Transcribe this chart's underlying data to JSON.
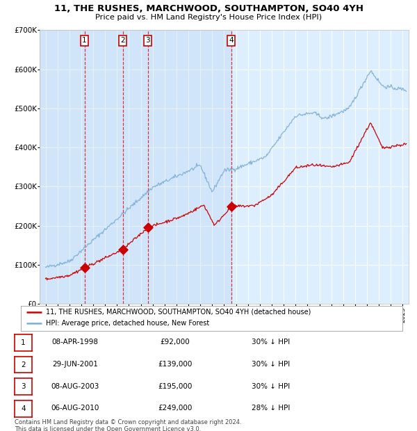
{
  "title": "11, THE RUSHES, MARCHWOOD, SOUTHAMPTON, SO40 4YH",
  "subtitle": "Price paid vs. HM Land Registry's House Price Index (HPI)",
  "title_fontsize": 9.5,
  "subtitle_fontsize": 8.5,
  "background_color": "#ffffff",
  "plot_bg_color": "#ddeeff",
  "grid_color": "#ffffff",
  "sale_dates": [
    1998.27,
    2001.49,
    2003.6,
    2010.6
  ],
  "sale_prices": [
    92000,
    139000,
    195000,
    249000
  ],
  "sale_labels": [
    "1",
    "2",
    "3",
    "4"
  ],
  "legend_house": "11, THE RUSHES, MARCHWOOD, SOUTHAMPTON, SO40 4YH (detached house)",
  "legend_hpi": "HPI: Average price, detached house, New Forest",
  "house_color": "#cc0000",
  "hpi_color": "#7aadd4",
  "table_rows": [
    [
      "1",
      "08-APR-1998",
      "£92,000",
      "30% ↓ HPI"
    ],
    [
      "2",
      "29-JUN-2001",
      "£139,000",
      "30% ↓ HPI"
    ],
    [
      "3",
      "08-AUG-2003",
      "£195,000",
      "30% ↓ HPI"
    ],
    [
      "4",
      "06-AUG-2010",
      "£249,000",
      "28% ↓ HPI"
    ]
  ],
  "footer": "Contains HM Land Registry data © Crown copyright and database right 2024.\nThis data is licensed under the Open Government Licence v3.0.",
  "ylim": [
    0,
    700000
  ],
  "xlim": [
    1994.5,
    2025.5
  ]
}
